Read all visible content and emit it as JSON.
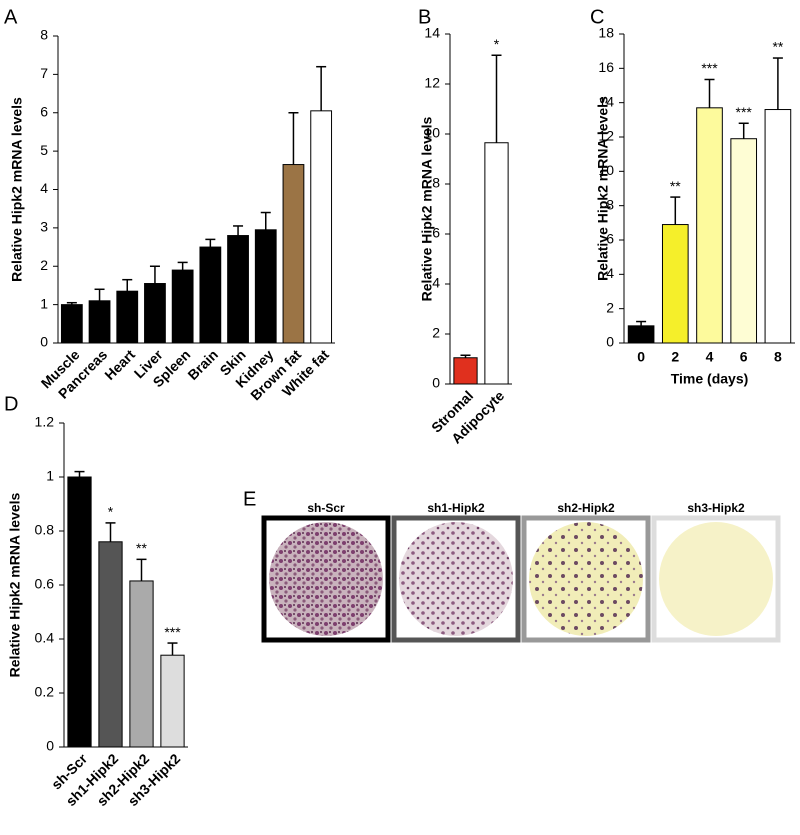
{
  "chart_data": [
    {
      "type": "bar",
      "label": "A",
      "ylabel": "Relative Hipk2 mRNA levels",
      "categories": [
        "Muscle",
        "Pancreas",
        "Heart",
        "Liver",
        "Spleen",
        "Brain",
        "Skin",
        "Kidney",
        "Brown fat",
        "White fat"
      ],
      "values": [
        1.0,
        1.1,
        1.35,
        1.55,
        1.9,
        2.5,
        2.8,
        2.95,
        4.65,
        6.05
      ],
      "errors": [
        0.05,
        0.3,
        0.3,
        0.45,
        0.2,
        0.2,
        0.25,
        0.45,
        1.35,
        1.15
      ],
      "colors": [
        "#000000",
        "#000000",
        "#000000",
        "#000000",
        "#000000",
        "#000000",
        "#000000",
        "#000000",
        "#9b7445",
        "#ffffff"
      ],
      "ylim": [
        0,
        8
      ],
      "yticks": [
        0,
        1,
        2,
        3,
        4,
        5,
        6,
        7,
        8
      ]
    },
    {
      "type": "bar",
      "label": "B",
      "ylabel": "Relative Hipk2 mRNA levels",
      "categories": [
        "Stromal",
        "Adipocyte"
      ],
      "values": [
        1.05,
        9.65
      ],
      "errors": [
        0.1,
        3.5
      ],
      "colors": [
        "#e0301e",
        "#ffffff"
      ],
      "annotations": [
        null,
        "*"
      ],
      "ylim": [
        0,
        14
      ],
      "yticks": [
        0,
        2,
        4,
        6,
        8,
        10,
        12,
        14
      ]
    },
    {
      "type": "bar",
      "label": "C",
      "ylabel": "Relative Hipk2 mRNA levels",
      "xlabel": "Time (days)",
      "categories": [
        "0",
        "2",
        "4",
        "6",
        "8"
      ],
      "values": [
        1.0,
        6.9,
        13.7,
        11.9,
        13.6
      ],
      "errors": [
        0.25,
        1.6,
        1.65,
        0.9,
        3.0
      ],
      "colors": [
        "#000000",
        "#f5ef2a",
        "#fdfa9c",
        "#fefdd4",
        "#ffffff"
      ],
      "annotations": [
        null,
        "**",
        "***",
        "***",
        "**"
      ],
      "ylim": [
        0,
        18
      ],
      "yticks": [
        0,
        2,
        4,
        6,
        8,
        10,
        12,
        14,
        16,
        18
      ]
    },
    {
      "type": "bar",
      "label": "D",
      "ylabel": "Relative Hipk2 mRNA levels",
      "categories": [
        "sh-Scr",
        "sh1-Hipk2",
        "sh2-Hipk2",
        "sh3-Hipk2"
      ],
      "values": [
        1.0,
        0.76,
        0.615,
        0.34
      ],
      "errors": [
        0.02,
        0.07,
        0.08,
        0.045
      ],
      "colors": [
        "#000000",
        "#555555",
        "#aaaaaa",
        "#dddddd"
      ],
      "annotations": [
        null,
        "*",
        "**",
        "***"
      ],
      "ylim": [
        0,
        1.2
      ],
      "yticks": [
        0,
        0.2,
        0.4,
        0.6,
        0.8,
        1,
        1.2
      ]
    }
  ],
  "panel_e": {
    "label": "E",
    "wells": [
      "sh-Scr",
      "sh1-Hipk2",
      "sh2-Hipk2",
      "sh3-Hipk2"
    ]
  }
}
